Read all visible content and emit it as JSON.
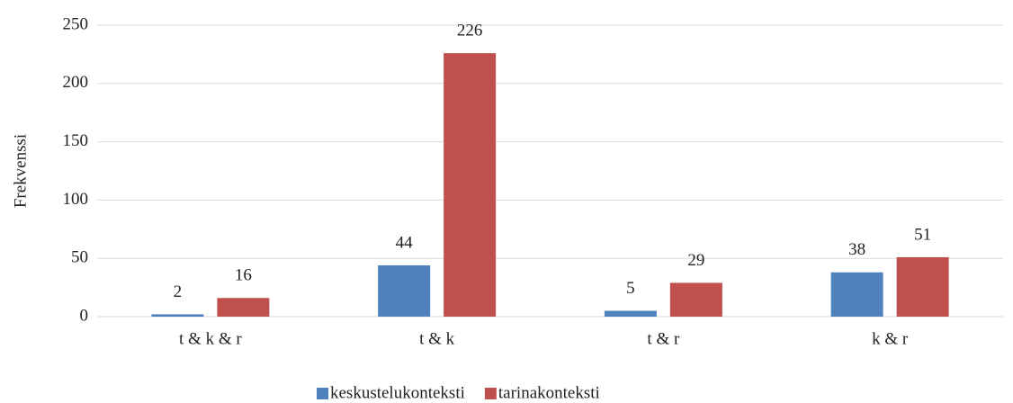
{
  "chart_data": {
    "type": "bar",
    "y_label": "Frekvenssi",
    "categories": [
      "t & k & r",
      "t & k",
      "t & r",
      "k & r"
    ],
    "series": [
      {
        "name": "keskustelukonteksti",
        "color": "#4f81bd",
        "values": [
          2,
          44,
          5,
          38
        ]
      },
      {
        "name": "tarinakonteksti",
        "color": "#c0504d",
        "values": [
          16,
          226,
          29,
          51
        ]
      }
    ],
    "ylim": [
      0,
      250
    ],
    "yticks": [
      0,
      50,
      100,
      150,
      200,
      250
    ],
    "grid": true,
    "legend": "bottom"
  }
}
